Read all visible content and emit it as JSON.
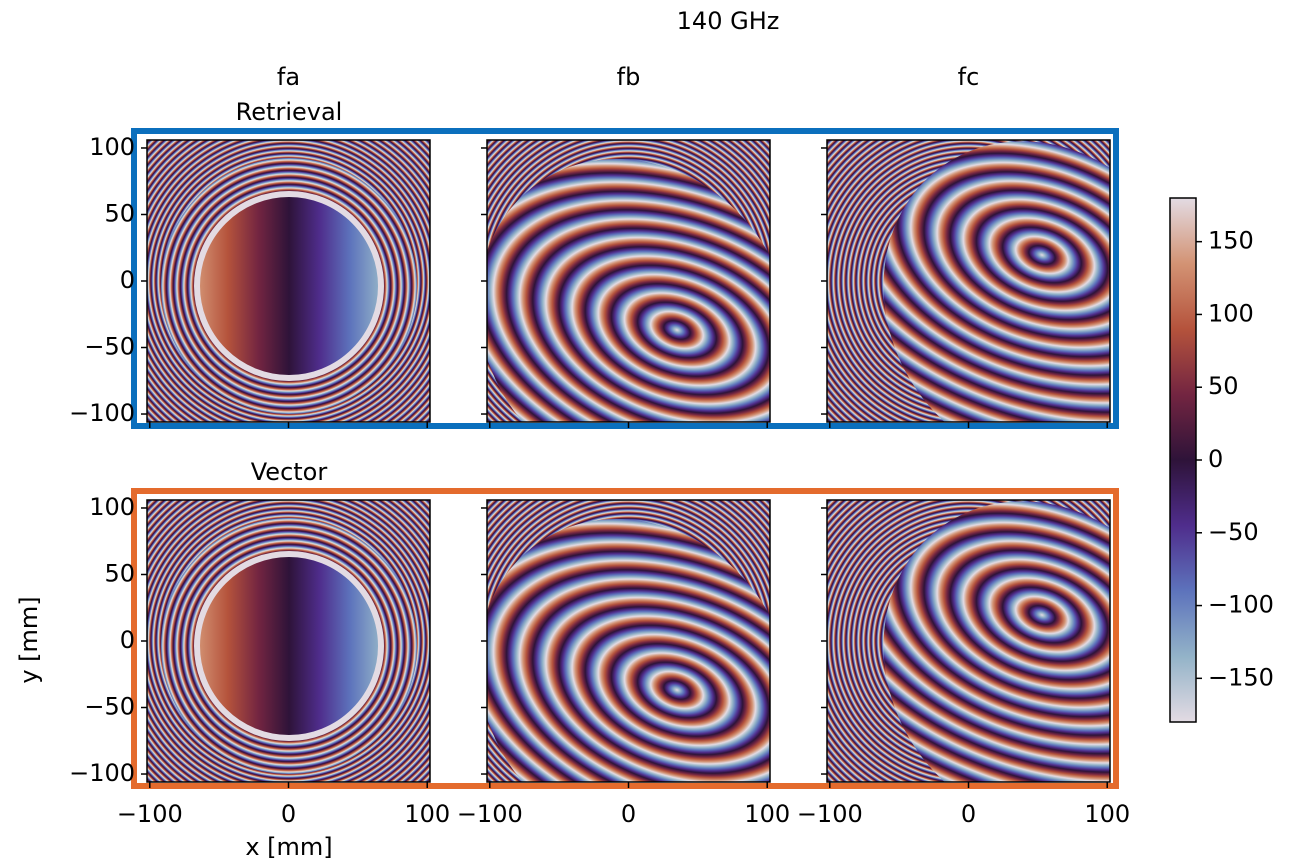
{
  "chart_data": {
    "type": "heatmap",
    "title": "140 GHz",
    "columns": [
      "fa",
      "fb",
      "fc"
    ],
    "rows": [
      "Retrieval",
      "Vector"
    ],
    "xlabel": "x [mm]",
    "ylabel": "y [mm]",
    "xlim": [
      -102,
      102
    ],
    "ylim": [
      -106,
      106
    ],
    "xticks": [
      {
        "value": -100,
        "label": "−100"
      },
      0,
      100
    ],
    "yticks": [
      {
        "value": -100,
        "label": "−100"
      },
      {
        "value": -50,
        "label": "−50"
      },
      0,
      50,
      100
    ],
    "frame_colors": [
      "#0b6fbd",
      "#e46b2d"
    ],
    "colorbar": {
      "lim": [
        -180,
        180
      ],
      "ticks": [
        {
          "value": -150,
          "label": "−150"
        },
        {
          "value": -100,
          "label": "−100"
        },
        {
          "value": -50,
          "label": "−50"
        },
        0,
        50,
        100,
        150
      ],
      "colormap": [
        "#e3dbe3",
        "#93b3c8",
        "#5d73bc",
        "#4f2d8c",
        "#2e1339",
        "#732541",
        "#b5533c",
        "#d39374",
        "#e3dbe3"
      ]
    }
  }
}
